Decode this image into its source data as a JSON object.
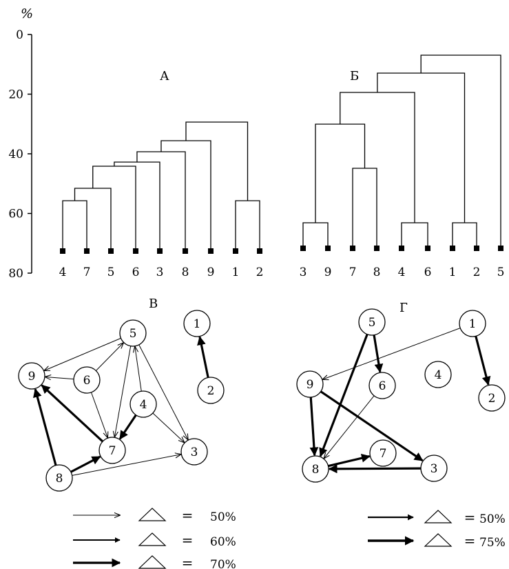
{
  "axis": {
    "unit": "%",
    "ticks": [
      "0",
      "20",
      "40",
      "60",
      "80"
    ]
  },
  "panels": {
    "A": {
      "label": "А",
      "leaves": [
        "4",
        "7",
        "5",
        "6",
        "3",
        "8",
        "9",
        "1",
        "2"
      ]
    },
    "B": {
      "label": "Б",
      "leaves": [
        "3",
        "9",
        "7",
        "8",
        "4",
        "6",
        "1",
        "2",
        "5"
      ]
    },
    "V": {
      "label": "В",
      "nodes": [
        "1",
        "2",
        "3",
        "4",
        "5",
        "6",
        "7",
        "8",
        "9"
      ],
      "edges": [
        {
          "from": "2",
          "to": "1",
          "level": "70%"
        },
        {
          "from": "8",
          "to": "9",
          "level": "70%"
        },
        {
          "from": "7",
          "to": "9",
          "level": "70%"
        },
        {
          "from": "8",
          "to": "7",
          "level": "70%"
        },
        {
          "from": "4",
          "to": "7",
          "level": "70%"
        },
        {
          "from": "5",
          "to": "9",
          "level": "50%"
        },
        {
          "from": "6",
          "to": "9",
          "level": "50%"
        },
        {
          "from": "6",
          "to": "5",
          "level": "50%"
        },
        {
          "from": "6",
          "to": "7",
          "level": "50%"
        },
        {
          "from": "5",
          "to": "7",
          "level": "50%"
        },
        {
          "from": "4",
          "to": "5",
          "level": "50%"
        },
        {
          "from": "5",
          "to": "3",
          "level": "50%"
        },
        {
          "from": "4",
          "to": "3",
          "level": "50%"
        },
        {
          "from": "8",
          "to": "3",
          "level": "50%"
        }
      ]
    },
    "G": {
      "label": "Г",
      "nodes": [
        "1",
        "2",
        "3",
        "4",
        "5",
        "6",
        "7",
        "8",
        "9"
      ],
      "edges": [
        {
          "from": "1",
          "to": "9",
          "level": "50%"
        },
        {
          "from": "1",
          "to": "2",
          "level": "75%"
        },
        {
          "from": "5",
          "to": "8",
          "level": "75%"
        },
        {
          "from": "5",
          "to": "6",
          "level": "75%"
        },
        {
          "from": "6",
          "to": "8",
          "level": "50%"
        },
        {
          "from": "9",
          "to": "8",
          "level": "75%"
        },
        {
          "from": "9",
          "to": "3",
          "level": "75%"
        },
        {
          "from": "8",
          "to": "7",
          "level": "75%"
        },
        {
          "from": "3",
          "to": "8",
          "level": "75%"
        }
      ]
    }
  },
  "legend_left": [
    {
      "value": "50%",
      "sign": "="
    },
    {
      "value": "60%",
      "sign": "="
    },
    {
      "value": "70%",
      "sign": "="
    }
  ],
  "legend_right": [
    {
      "value": "50%",
      "sign": "="
    },
    {
      "value": "75%",
      "sign": "="
    }
  ]
}
